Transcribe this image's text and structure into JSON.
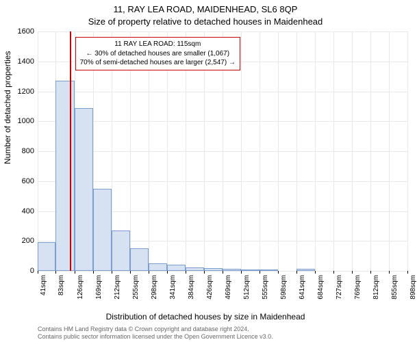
{
  "title_line1": "11, RAY LEA ROAD, MAIDENHEAD, SL6 8QP",
  "title_line2": "Size of property relative to detached houses in Maidenhead",
  "ylabel": "Number of detached properties",
  "xlabel": "Distribution of detached houses by size in Maidenhead",
  "footer_line1": "Contains HM Land Registry data © Crown copyright and database right 2024.",
  "footer_line2": "Contains public sector information licensed under the Open Government Licence v3.0.",
  "chart": {
    "type": "histogram",
    "ylim": [
      0,
      1600
    ],
    "ytick_step": 200,
    "yticks": [
      0,
      200,
      400,
      600,
      800,
      1000,
      1200,
      1400,
      1600
    ],
    "xlim": [
      41,
      898
    ],
    "xticks": [
      41,
      83,
      126,
      169,
      212,
      255,
      298,
      341,
      384,
      426,
      469,
      512,
      555,
      598,
      641,
      684,
      727,
      769,
      812,
      855,
      898
    ],
    "xtick_suffix": "sqm",
    "bar_fill": "#d6e2f2",
    "bar_stroke": "#7a9ecf",
    "grid_color": "#e8e8e8",
    "marker_x": 115,
    "marker_color": "#cc0000",
    "bars": [
      {
        "x0": 41,
        "x1": 83,
        "y": 190
      },
      {
        "x0": 83,
        "x1": 126,
        "y": 1270
      },
      {
        "x0": 126,
        "x1": 169,
        "y": 1090
      },
      {
        "x0": 169,
        "x1": 212,
        "y": 550
      },
      {
        "x0": 212,
        "x1": 255,
        "y": 270
      },
      {
        "x0": 255,
        "x1": 298,
        "y": 150
      },
      {
        "x0": 298,
        "x1": 341,
        "y": 50
      },
      {
        "x0": 341,
        "x1": 384,
        "y": 40
      },
      {
        "x0": 384,
        "x1": 426,
        "y": 25
      },
      {
        "x0": 426,
        "x1": 469,
        "y": 20
      },
      {
        "x0": 469,
        "x1": 512,
        "y": 12
      },
      {
        "x0": 512,
        "x1": 555,
        "y": 10
      },
      {
        "x0": 555,
        "x1": 598,
        "y": 5
      },
      {
        "x0": 598,
        "x1": 641,
        "y": 0
      },
      {
        "x0": 641,
        "x1": 684,
        "y": 15
      },
      {
        "x0": 684,
        "x1": 727,
        "y": 0
      },
      {
        "x0": 727,
        "x1": 769,
        "y": 0
      },
      {
        "x0": 769,
        "x1": 812,
        "y": 0
      },
      {
        "x0": 812,
        "x1": 855,
        "y": 0
      },
      {
        "x0": 855,
        "x1": 898,
        "y": 0
      }
    ],
    "annotation": {
      "line1": "11 RAY LEA ROAD: 115sqm",
      "line2": "← 30% of detached houses are smaller (1,067)",
      "line3": "70% of semi-detached houses are larger (2,547) →",
      "border_color": "#cc0000",
      "bg_color": "#ffffff",
      "fontsize": 10
    }
  }
}
